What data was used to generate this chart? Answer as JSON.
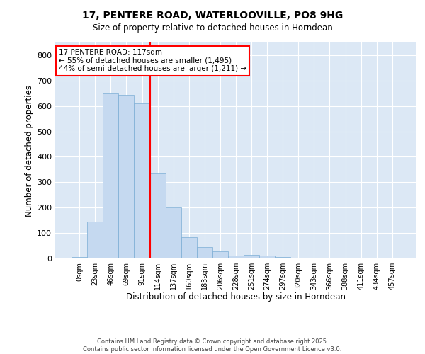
{
  "title_line1": "17, PENTERE ROAD, WATERLOOVILLE, PO8 9HG",
  "title_line2": "Size of property relative to detached houses in Horndean",
  "xlabel": "Distribution of detached houses by size in Horndean",
  "ylabel": "Number of detached properties",
  "bar_color": "#c5d9f0",
  "bar_edge_color": "#7aadd4",
  "background_color": "#dce8f5",
  "grid_color": "#ffffff",
  "vline_x": 4.5,
  "vline_color": "red",
  "annotation_text": "17 PENTERE ROAD: 117sqm\n← 55% of detached houses are smaller (1,495)\n44% of semi-detached houses are larger (1,211) →",
  "annotation_box_color": "red",
  "categories": [
    "0sqm",
    "23sqm",
    "46sqm",
    "69sqm",
    "91sqm",
    "114sqm",
    "137sqm",
    "160sqm",
    "183sqm",
    "206sqm",
    "228sqm",
    "251sqm",
    "274sqm",
    "297sqm",
    "320sqm",
    "343sqm",
    "366sqm",
    "388sqm",
    "411sqm",
    "434sqm",
    "457sqm"
  ],
  "values": [
    5,
    145,
    648,
    645,
    610,
    335,
    200,
    83,
    45,
    28,
    12,
    13,
    10,
    6,
    0,
    0,
    0,
    0,
    0,
    0,
    4
  ],
  "ylim": [
    0,
    850
  ],
  "yticks": [
    0,
    100,
    200,
    300,
    400,
    500,
    600,
    700,
    800
  ],
  "footer_line1": "Contains HM Land Registry data © Crown copyright and database right 2025.",
  "footer_line2": "Contains public sector information licensed under the Open Government Licence v3.0."
}
